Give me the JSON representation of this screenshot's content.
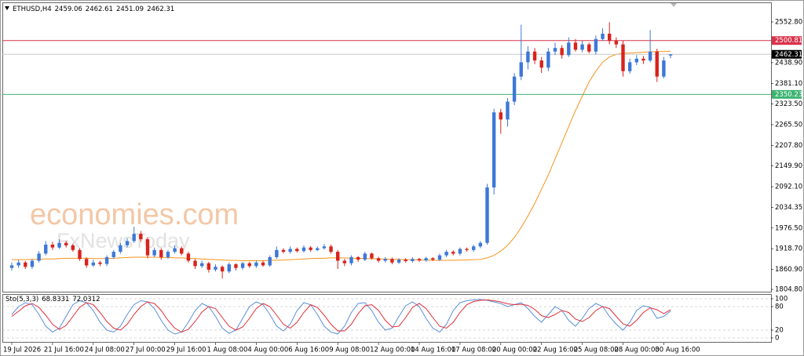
{
  "chart_data": [
    {
      "type": "candlestick",
      "symbol": "ETHUSD,H4",
      "watermark": [
        "economies.com",
        "FxNewsToday"
      ],
      "up_color": "#3c78d8",
      "down_color": "#d9221c",
      "categories": [
        "19 Jul 2026",
        null,
        null,
        null,
        null,
        null,
        "21 Jul 16:00",
        null,
        null,
        null,
        null,
        null,
        "24 Jul 08:00",
        null,
        null,
        null,
        null,
        null,
        "27 Jul 00:00",
        null,
        null,
        null,
        null,
        null,
        "29 Jul 16:00",
        null,
        null,
        null,
        null,
        null,
        "1 Aug 08:00",
        null,
        null,
        null,
        null,
        null,
        "4 Aug 00:00",
        null,
        null,
        null,
        null,
        null,
        "6 Aug 16:00",
        null,
        null,
        null,
        null,
        null,
        "9 Aug 08:00",
        null,
        null,
        null,
        null,
        null,
        "12 Aug 00:00",
        null,
        null,
        null,
        null,
        null,
        "14 Aug 16:00",
        null,
        null,
        null,
        null,
        null,
        "17 Aug 08:00",
        null,
        null,
        null,
        null,
        null,
        "20 Aug 00:00",
        null,
        null,
        null,
        null,
        null,
        "22 Aug 16:00",
        null,
        null,
        null,
        null,
        null,
        "25 Aug 08:00",
        null,
        null,
        null,
        null,
        null,
        "28 Aug 00:00",
        null,
        null,
        null,
        null,
        null,
        "30 Aug 16:00",
        null
      ],
      "open": [
        1865,
        1872,
        1880,
        1868,
        1885,
        1905,
        1930,
        1922,
        1935,
        1928,
        1915,
        1890,
        1872,
        1880,
        1876,
        1895,
        1910,
        1928,
        1940,
        1960,
        1945,
        1900,
        1915,
        1895,
        1910,
        1920,
        1905,
        1885,
        1870,
        1878,
        1860,
        1868,
        1855,
        1875,
        1865,
        1878,
        1870,
        1880,
        1872,
        1895,
        1915,
        1910,
        1918,
        1912,
        1922,
        1915,
        1920,
        1925,
        1910,
        1885,
        1878,
        1895,
        1888,
        1905,
        1892,
        1885,
        1890,
        1880,
        1888,
        1884,
        1890,
        1886,
        1892,
        1888,
        1900,
        1910,
        1905,
        1918,
        1915,
        1925,
        1935,
        2090,
        2300,
        2280,
        2330,
        2400,
        2440,
        2470,
        2445,
        2425,
        2470,
        2480,
        2460,
        2495,
        2475,
        2490,
        2470,
        2505,
        2520,
        2500,
        2490,
        2415,
        2440,
        2450,
        2445,
        2470,
        2400,
        2459.06
      ],
      "high": [
        1880,
        1888,
        1884,
        1890,
        1912,
        1940,
        1938,
        1945,
        1940,
        1932,
        1920,
        1895,
        1888,
        1885,
        1900,
        1915,
        1935,
        1948,
        1980,
        1968,
        1950,
        1922,
        1920,
        1915,
        1928,
        1925,
        1910,
        1890,
        1885,
        1882,
        1875,
        1872,
        1880,
        1878,
        1882,
        1882,
        1886,
        1885,
        1900,
        1925,
        1920,
        1925,
        1922,
        1928,
        1926,
        1925,
        1932,
        1930,
        1915,
        1890,
        1900,
        1898,
        1910,
        1908,
        1896,
        1895,
        1894,
        1892,
        1892,
        1895,
        1893,
        1896,
        1895,
        1905,
        1915,
        1914,
        1922,
        1922,
        1930,
        1940,
        2100,
        2310,
        2310,
        2340,
        2410,
        2545,
        2485,
        2480,
        2455,
        2480,
        2495,
        2488,
        2510,
        2505,
        2500,
        2495,
        2515,
        2535,
        2552,
        2510,
        2500,
        2450,
        2460,
        2458,
        2530,
        2478,
        2455,
        2462.61
      ],
      "low": [
        1858,
        1865,
        1862,
        1862,
        1880,
        1900,
        1915,
        1918,
        1922,
        1910,
        1885,
        1865,
        1868,
        1870,
        1870,
        1890,
        1905,
        1922,
        1935,
        1938,
        1892,
        1895,
        1888,
        1890,
        1905,
        1900,
        1880,
        1862,
        1865,
        1852,
        1855,
        1835,
        1850,
        1858,
        1860,
        1865,
        1865,
        1868,
        1868,
        1890,
        1905,
        1905,
        1908,
        1908,
        1910,
        1912,
        1916,
        1905,
        1862,
        1870,
        1872,
        1882,
        1884,
        1888,
        1880,
        1880,
        1875,
        1876,
        1880,
        1880,
        1882,
        1882,
        1884,
        1884,
        1895,
        1900,
        1900,
        1910,
        1910,
        1920,
        1930,
        2070,
        2240,
        2260,
        2320,
        2390,
        2420,
        2435,
        2410,
        2415,
        2460,
        2450,
        2455,
        2470,
        2468,
        2465,
        2462,
        2500,
        2490,
        2480,
        2400,
        2408,
        2432,
        2435,
        2440,
        2385,
        2395,
        2451.09
      ],
      "close": [
        1872,
        1880,
        1868,
        1885,
        1905,
        1930,
        1922,
        1935,
        1928,
        1915,
        1890,
        1872,
        1880,
        1876,
        1895,
        1910,
        1928,
        1940,
        1960,
        1945,
        1900,
        1915,
        1895,
        1910,
        1920,
        1905,
        1885,
        1870,
        1878,
        1860,
        1868,
        1855,
        1875,
        1865,
        1878,
        1870,
        1880,
        1872,
        1895,
        1915,
        1910,
        1918,
        1912,
        1922,
        1915,
        1920,
        1925,
        1910,
        1885,
        1878,
        1895,
        1888,
        1905,
        1892,
        1885,
        1890,
        1880,
        1888,
        1884,
        1890,
        1886,
        1892,
        1888,
        1900,
        1910,
        1905,
        1918,
        1915,
        1925,
        1935,
        2090,
        2300,
        2280,
        2330,
        2400,
        2440,
        2470,
        2445,
        2425,
        2470,
        2480,
        2460,
        2495,
        2475,
        2490,
        2470,
        2505,
        2520,
        2500,
        2490,
        2415,
        2440,
        2450,
        2445,
        2470,
        2400,
        2445,
        2462.31
      ],
      "series": [
        {
          "color": "#f7931e",
          "values": [
            1888,
            1888,
            1888,
            1889,
            1889,
            1890,
            1890,
            1891,
            1892,
            1892,
            1892,
            1892,
            1891,
            1891,
            1891,
            1892,
            1893,
            1894,
            1895,
            1895,
            1895,
            1895,
            1894,
            1894,
            1893,
            1893,
            1892,
            1891,
            1890,
            1889,
            1888,
            1887,
            1886,
            1886,
            1885,
            1885,
            1885,
            1885,
            1886,
            1886,
            1887,
            1888,
            1889,
            1890,
            1891,
            1892,
            1892,
            1893,
            1893,
            1893,
            1892,
            1892,
            1891,
            1891,
            1890,
            1890,
            1889,
            1889,
            1888,
            1888,
            1887,
            1887,
            1886,
            1886,
            1886,
            1886,
            1887,
            1887,
            1888,
            1889,
            1893,
            1900,
            1912,
            1928,
            1950,
            1978,
            2010,
            2045,
            2085,
            2125,
            2170,
            2215,
            2260,
            2305,
            2345,
            2385,
            2415,
            2440,
            2455,
            2462,
            2465,
            2466,
            2467,
            2468,
            2469,
            2470,
            2470,
            2471
          ]
        }
      ],
      "levels": [
        {
          "value": 2500.81,
          "color": "#d9324a"
        },
        {
          "value": 2350.23,
          "color": "#3cb371"
        }
      ],
      "current_color": "#c8c8c8",
      "ylim": [
        1798.4,
        2605.4
      ],
      "yticks": [
        {
          "value": 2552.8,
          "label": "2552.80"
        },
        {
          "value": 2438.9,
          "label": "2438.90"
        },
        {
          "value": 2381.1,
          "label": "2381.10"
        },
        {
          "value": 2323.5,
          "label": "2323.50"
        },
        {
          "value": 2265.5,
          "label": "2265.50"
        },
        {
          "value": 2207.8,
          "label": "2207.80"
        },
        {
          "value": 2149.9,
          "label": "2149.90"
        },
        {
          "value": 2092.1,
          "label": "2092.10"
        },
        2034.35,
        {
          "value": 1976.5,
          "label": "1976.50"
        },
        {
          "value": 1918.7,
          "label": "1918.70"
        },
        {
          "value": 1860.9,
          "label": "1860.90"
        },
        {
          "value": 1804.8,
          "label": "1804.80"
        }
      ]
    },
    {
      "type": "line",
      "title": "Sto(5,3,3)",
      "series": [
        {
          "color": "#5b8fd9",
          "values": [
            60,
            80,
            90,
            85,
            60,
            30,
            15,
            25,
            55,
            85,
            95,
            90,
            70,
            40,
            20,
            15,
            30,
            60,
            85,
            95,
            92,
            75,
            45,
            20,
            10,
            15,
            40,
            70,
            88,
            80,
            55,
            25,
            12,
            20,
            50,
            80,
            92,
            85,
            60,
            30,
            18,
            35,
            70,
            90,
            85,
            60,
            30,
            15,
            10,
            30,
            65,
            88,
            90,
            70,
            40,
            20,
            25,
            55,
            82,
            92,
            80,
            50,
            25,
            15,
            35,
            70,
            90,
            95,
            97,
            98,
            96,
            92,
            88,
            80,
            85,
            90,
            75,
            55,
            40,
            60,
            80,
            70,
            45,
            30,
            50,
            75,
            88,
            80,
            55,
            35,
            20,
            40,
            70,
            82,
            78,
            50,
            55,
            68.8331
          ]
        },
        {
          "color": "#e0303a",
          "values": [
            55,
            68,
            82,
            88,
            78,
            58,
            35,
            22,
            32,
            55,
            78,
            90,
            85,
            65,
            42,
            25,
            20,
            35,
            60,
            80,
            92,
            88,
            70,
            45,
            25,
            15,
            22,
            42,
            66,
            80,
            75,
            52,
            30,
            20,
            28,
            50,
            75,
            88,
            80,
            58,
            35,
            25,
            40,
            65,
            85,
            78,
            58,
            35,
            18,
            18,
            35,
            62,
            82,
            85,
            70,
            45,
            28,
            30,
            52,
            78,
            88,
            75,
            52,
            30,
            25,
            40,
            65,
            85,
            93,
            96,
            97,
            95,
            92,
            87,
            85,
            86,
            83,
            73,
            57,
            52,
            60,
            70,
            65,
            48,
            42,
            52,
            70,
            80,
            75,
            55,
            36,
            30,
            45,
            65,
            77,
            72,
            62,
            72.0312
          ]
        }
      ],
      "ylim": [
        -10,
        110
      ],
      "yticks": [
        100,
        80,
        20,
        0
      ]
    }
  ]
}
